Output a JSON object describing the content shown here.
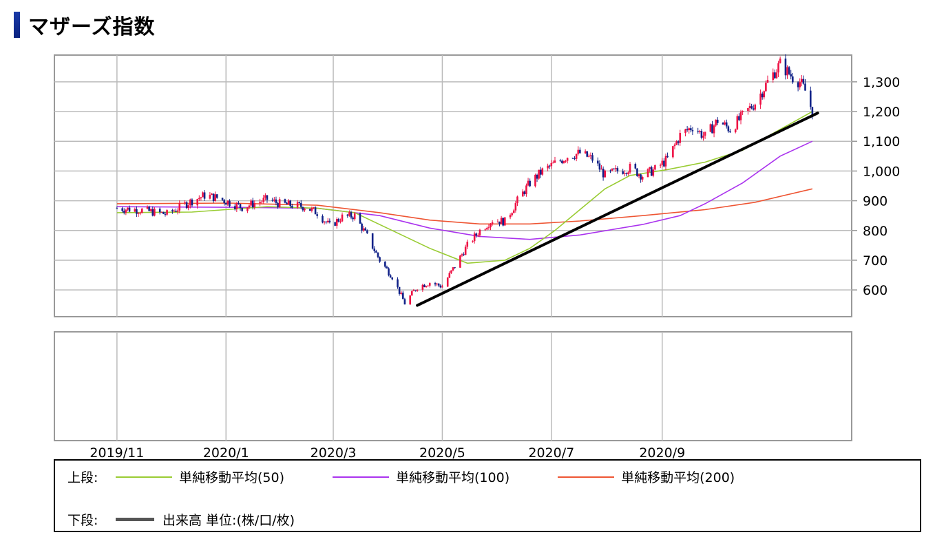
{
  "header": {
    "title": "マザーズ指数"
  },
  "chart_data": {
    "type": "candlestick",
    "title": "マザーズ指数",
    "x_ticks": [
      "2019/11",
      "2020/1",
      "2020/3",
      "2020/5",
      "2020/7",
      "2020/9"
    ],
    "y_ticks": [
      "600",
      "700",
      "800",
      "900",
      "1,000",
      "1,100",
      "1,200",
      "1,300"
    ],
    "ylim": [
      510,
      1390
    ],
    "grid": true,
    "colors": {
      "up": "#ee1144",
      "down": "#112288",
      "ma50": "#99cc33",
      "ma100": "#aa33ee",
      "ma200": "#ee5533",
      "trendline": "#000000"
    },
    "price_path": [
      [
        "2019-11-01",
        875
      ],
      [
        "2019-11-15",
        868
      ],
      [
        "2019-11-29",
        855
      ],
      [
        "2019-12-13",
        900
      ],
      [
        "2019-12-20",
        918
      ],
      [
        "2019-12-27",
        910
      ],
      [
        "2020-01-10",
        878
      ],
      [
        "2020-01-24",
        905
      ],
      [
        "2020-01-31",
        890
      ],
      [
        "2020-02-14",
        880
      ],
      [
        "2020-02-21",
        860
      ],
      [
        "2020-02-28",
        815
      ],
      [
        "2020-03-06",
        845
      ],
      [
        "2020-03-13",
        850
      ],
      [
        "2020-03-20",
        780
      ],
      [
        "2020-03-27",
        700
      ],
      [
        "2020-04-03",
        645
      ],
      [
        "2020-04-10",
        555
      ],
      [
        "2020-04-17",
        610
      ],
      [
        "2020-04-24",
        625
      ],
      [
        "2020-05-01",
        612
      ],
      [
        "2020-05-08",
        680
      ],
      [
        "2020-05-15",
        750
      ],
      [
        "2020-05-22",
        800
      ],
      [
        "2020-05-29",
        835
      ],
      [
        "2020-06-05",
        830
      ],
      [
        "2020-06-12",
        900
      ],
      [
        "2020-06-19",
        960
      ],
      [
        "2020-06-26",
        1000
      ],
      [
        "2020-07-03",
        1025
      ],
      [
        "2020-07-10",
        1050
      ],
      [
        "2020-07-17",
        1060
      ],
      [
        "2020-07-24",
        1040
      ],
      [
        "2020-07-31",
        985
      ],
      [
        "2020-08-07",
        1000
      ],
      [
        "2020-08-14",
        1010
      ],
      [
        "2020-08-21",
        985
      ],
      [
        "2020-08-28",
        1005
      ],
      [
        "2020-09-04",
        1040
      ],
      [
        "2020-09-11",
        1120
      ],
      [
        "2020-09-18",
        1150
      ],
      [
        "2020-09-25",
        1115
      ],
      [
        "2020-10-02",
        1170
      ],
      [
        "2020-10-09",
        1140
      ],
      [
        "2020-10-16",
        1185
      ],
      [
        "2020-10-23",
        1230
      ],
      [
        "2020-10-30",
        1300
      ],
      [
        "2020-11-06",
        1360
      ],
      [
        "2020-11-13",
        1315
      ],
      [
        "2020-11-17",
        1300
      ],
      [
        "2020-11-20",
        1270
      ],
      [
        "2020-11-24",
        1200
      ]
    ],
    "ma50": [
      [
        "2019-11-01",
        860
      ],
      [
        "2019-12-13",
        862
      ],
      [
        "2020-01-24",
        880
      ],
      [
        "2020-02-21",
        875
      ],
      [
        "2020-03-13",
        860
      ],
      [
        "2020-04-03",
        800
      ],
      [
        "2020-04-24",
        740
      ],
      [
        "2020-05-15",
        690
      ],
      [
        "2020-06-05",
        700
      ],
      [
        "2020-06-19",
        740
      ],
      [
        "2020-07-03",
        800
      ],
      [
        "2020-07-17",
        870
      ],
      [
        "2020-07-31",
        940
      ],
      [
        "2020-08-14",
        985
      ],
      [
        "2020-09-04",
        1005
      ],
      [
        "2020-09-25",
        1030
      ],
      [
        "2020-10-16",
        1070
      ],
      [
        "2020-11-06",
        1140
      ],
      [
        "2020-11-24",
        1200
      ]
    ],
    "ma100": [
      [
        "2019-11-01",
        880
      ],
      [
        "2020-01-03",
        878
      ],
      [
        "2020-02-21",
        875
      ],
      [
        "2020-03-27",
        850
      ],
      [
        "2020-04-24",
        808
      ],
      [
        "2020-05-22",
        780
      ],
      [
        "2020-06-19",
        770
      ],
      [
        "2020-07-17",
        785
      ],
      [
        "2020-08-21",
        820
      ],
      [
        "2020-09-11",
        850
      ],
      [
        "2020-09-25",
        890
      ],
      [
        "2020-10-16",
        960
      ],
      [
        "2020-11-06",
        1050
      ],
      [
        "2020-11-24",
        1100
      ]
    ],
    "ma200": [
      [
        "2019-11-01",
        890
      ],
      [
        "2020-01-03",
        892
      ],
      [
        "2020-02-21",
        885
      ],
      [
        "2020-03-27",
        860
      ],
      [
        "2020-04-24",
        835
      ],
      [
        "2020-05-22",
        822
      ],
      [
        "2020-06-19",
        822
      ],
      [
        "2020-07-17",
        832
      ],
      [
        "2020-08-21",
        850
      ],
      [
        "2020-09-25",
        870
      ],
      [
        "2020-10-23",
        895
      ],
      [
        "2020-11-24",
        940
      ]
    ],
    "trendline": [
      [
        "2020-04-17",
        548
      ],
      [
        "2020-11-27",
        1195
      ]
    ],
    "legend": {
      "upper_label": "上段:",
      "lower_label": "下段:",
      "items": [
        {
          "name": "単純移動平均(50)",
          "color": "#99cc33"
        },
        {
          "name": "単純移動平均(100)",
          "color": "#aa33ee"
        },
        {
          "name": "単純移動平均(200)",
          "color": "#ee5533"
        }
      ],
      "volume_label": "出来高 単位:(株/口/枚)"
    }
  }
}
